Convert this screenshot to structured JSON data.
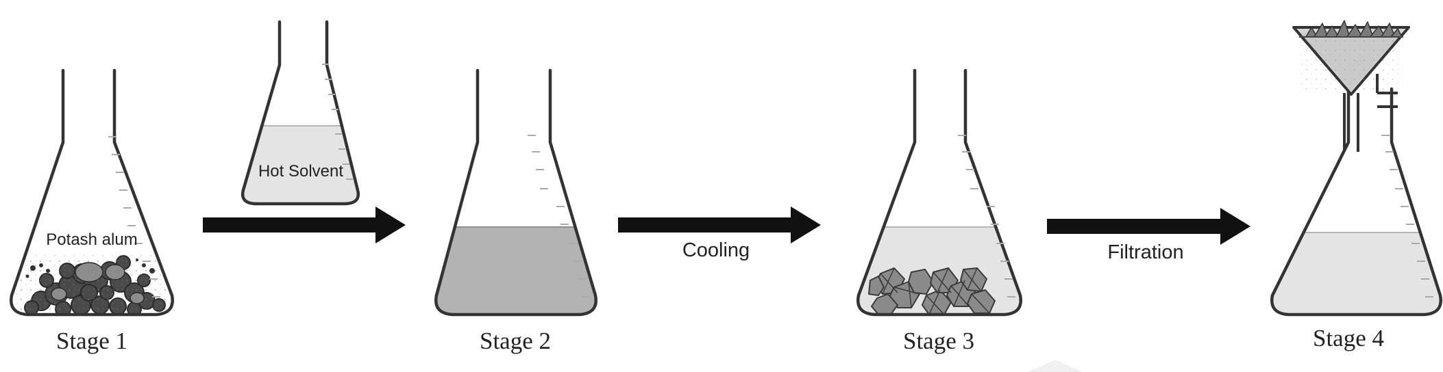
{
  "stages": [
    {
      "label": "Stage 1",
      "content": "Potash alum"
    },
    {
      "label": "Stage 2"
    },
    {
      "label": "Stage 3"
    },
    {
      "label": "Stage 4"
    }
  ],
  "hot_flask": {
    "label": "Hot Solvent"
  },
  "arrows": [
    {
      "label": ""
    },
    {
      "label": "Cooling"
    },
    {
      "label": "Filtration"
    }
  ],
  "colors": {
    "outline": "#333333",
    "liquid_dark": "#b3b3b3",
    "liquid_light": "#e4e4e4",
    "solid": "#444444",
    "arrow": "#111111"
  }
}
